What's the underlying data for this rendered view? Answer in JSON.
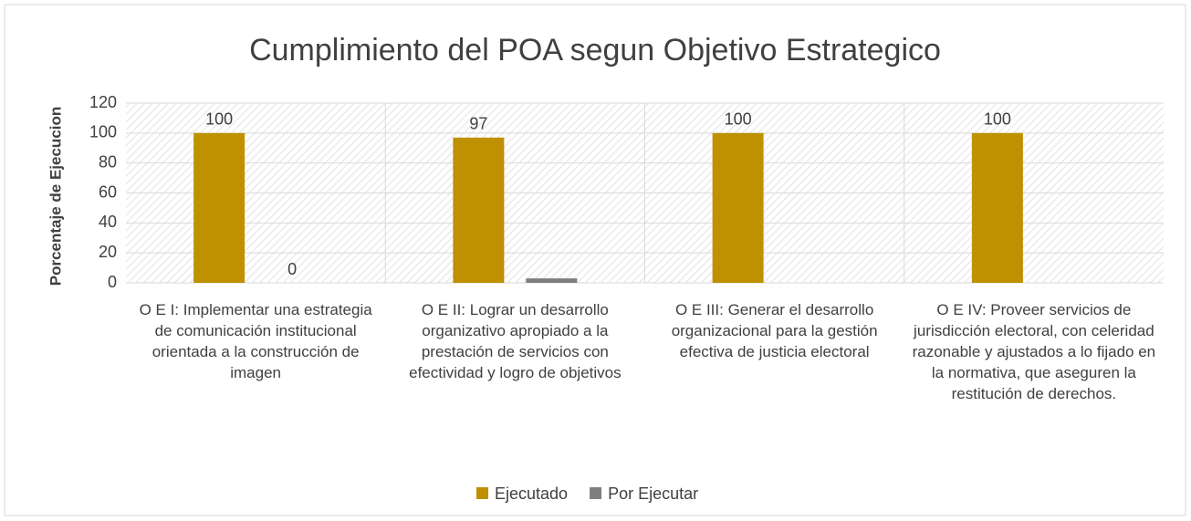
{
  "chart_data": {
    "type": "bar",
    "title": "Cumplimiento del POA segun Objetivo Estrategico",
    "y_label": "Porcentaje de Ejecucion",
    "categories": [
      "O E I: Implementar una estrategia de comunicación institucional orientada a la construcción de imagen",
      "O E II: Lograr un desarrollo organizativo apropiado a la prestación de servicios con efectividad y logro de objetivos",
      "O E III: Generar el desarrollo organizacional para la gestión efectiva de justicia electoral",
      "O E IV: Proveer servicios de jurisdicción electoral, con celeridad razonable y ajustados a lo fijado en la normativa, que aseguren la restitución de derechos."
    ],
    "series": [
      {
        "name": "Ejecutado",
        "color": "#bf9000",
        "values": [
          100,
          97,
          100,
          100
        ],
        "value_labels": [
          "100",
          "97",
          "100",
          "100"
        ]
      },
      {
        "name": "Por Ejecutar",
        "color": "#7f7f7f",
        "values": [
          0,
          3,
          0,
          0
        ],
        "value_labels": [
          "0",
          null,
          null,
          null
        ]
      }
    ],
    "ylim": [
      0,
      120
    ],
    "yticks": [
      0,
      20,
      40,
      60,
      80,
      100,
      120
    ],
    "grid": true,
    "legend": "bottom"
  }
}
